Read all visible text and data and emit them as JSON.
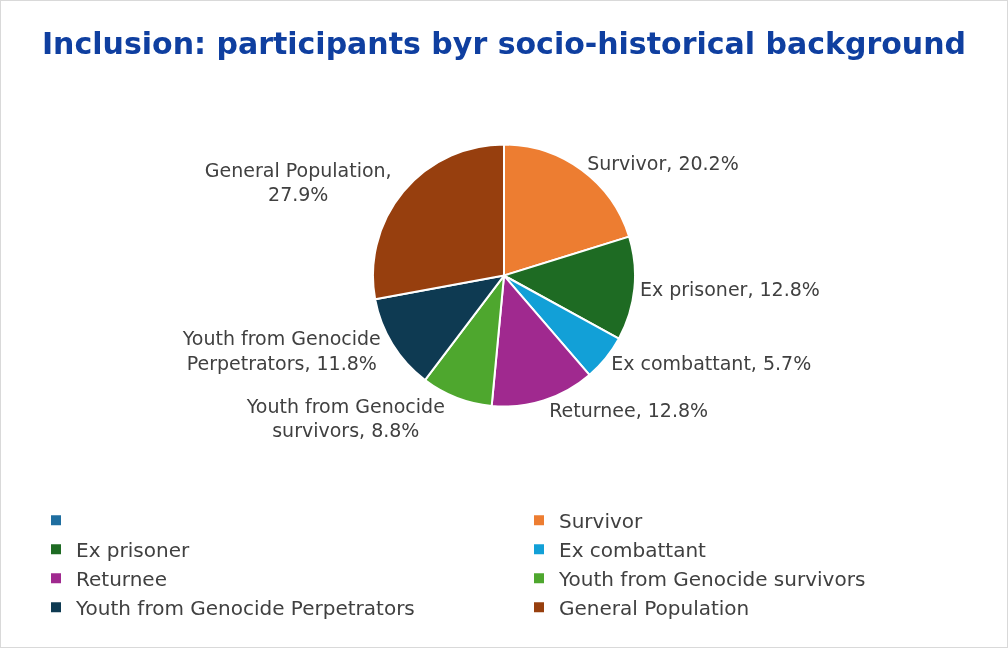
{
  "chart_data": {
    "type": "pie",
    "title": "Inclusion: participants byr socio-historical background",
    "categories": [
      null,
      "Survivor",
      "Ex prisoner",
      "Ex combattant",
      "Returnee",
      "Youth from Genocide survivors",
      "Youth from Genocide Perpetrators",
      "General Population"
    ],
    "values": [
      0,
      20.2,
      12.8,
      5.7,
      12.8,
      8.8,
      11.8,
      27.9
    ],
    "colors": [
      "#1f6ea0",
      "#ed7d31",
      "#1e6b23",
      "#12a0d7",
      "#a0298f",
      "#4ea72e",
      "#0e3a52",
      "#973f0e"
    ],
    "value_labels": [
      null,
      "Survivor, 20.2%",
      "Ex prisoner, 12.8%",
      "Ex combattant, 5.7%",
      "Returnee, 12.8%",
      "Youth from Genocide survivors, 8.8%",
      "Youth from Genocide Perpetrators, 11.8%",
      "General Population, 27.9%"
    ],
    "legend": "bottom"
  }
}
